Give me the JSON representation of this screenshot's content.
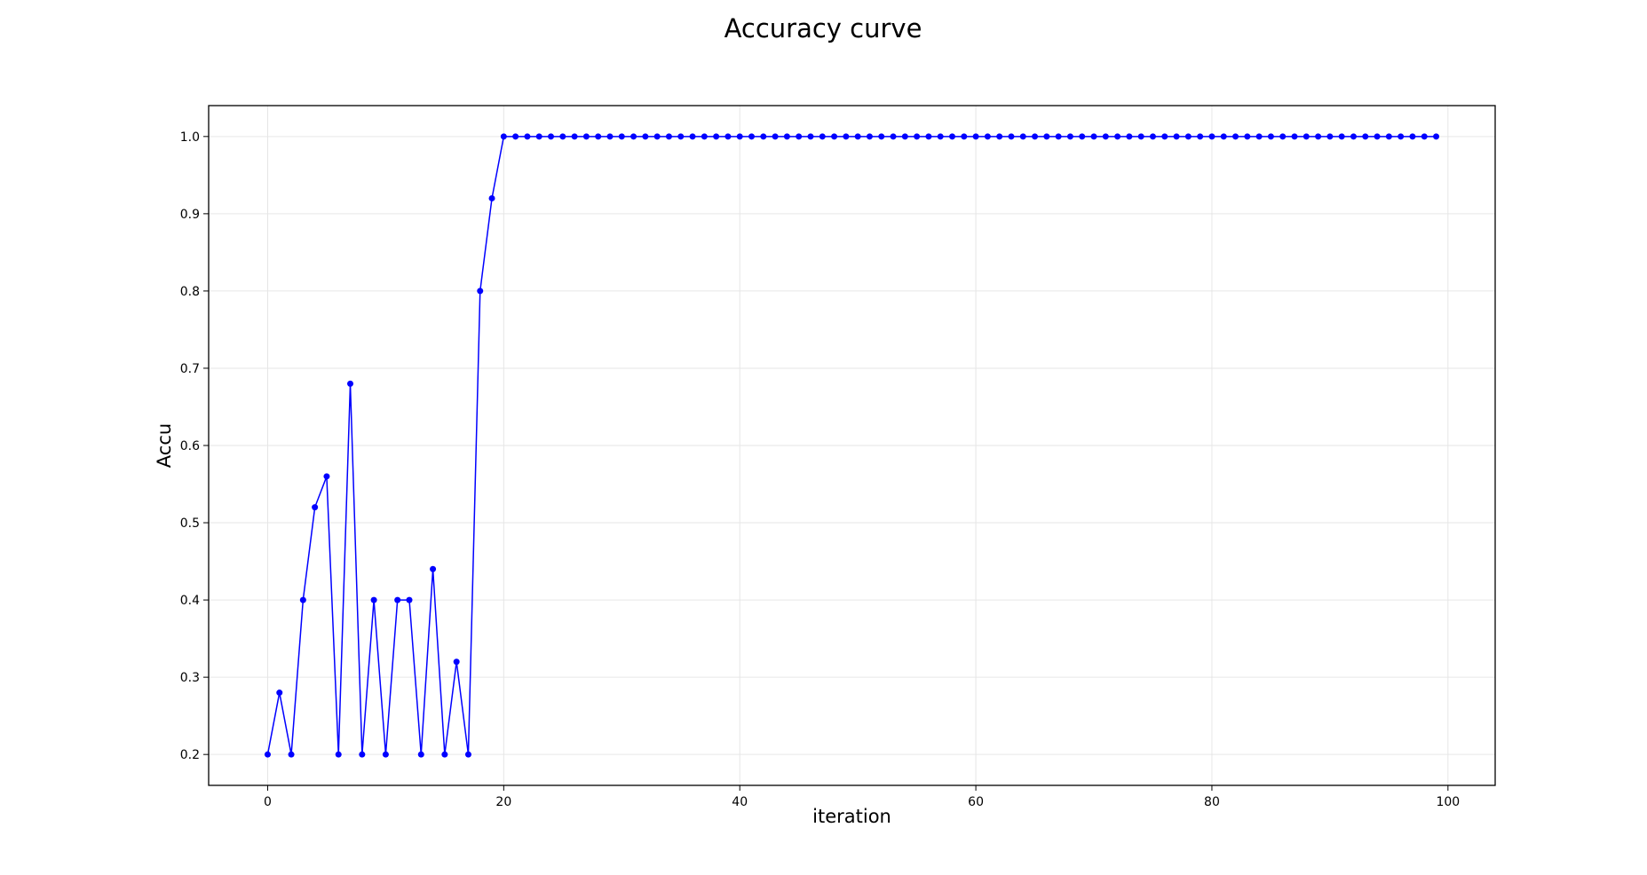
{
  "chart_data": {
    "type": "line",
    "title": "Accuracy curve",
    "xlabel": "iteration",
    "ylabel": "Accu",
    "xlim": [
      -5,
      104
    ],
    "ylim": [
      0.16,
      1.04
    ],
    "xticks": [
      0,
      20,
      40,
      60,
      80,
      100
    ],
    "yticks": [
      0.2,
      0.3,
      0.4,
      0.5,
      0.6,
      0.7,
      0.8,
      0.9,
      1.0
    ],
    "grid": true,
    "legend": "none",
    "colors": {
      "line": "#0000ff",
      "marker": "#0000ff",
      "grid": "#e6e6e6"
    },
    "series": [
      {
        "x": [
          0,
          1,
          2,
          3,
          4,
          5,
          6,
          7,
          8,
          9,
          10,
          11,
          12,
          13,
          14,
          15,
          16,
          17,
          18,
          19,
          20,
          21,
          22,
          23,
          24,
          25,
          26,
          27,
          28,
          29,
          30,
          31,
          32,
          33,
          34,
          35,
          36,
          37,
          38,
          39,
          40,
          41,
          42,
          43,
          44,
          45,
          46,
          47,
          48,
          49,
          50,
          51,
          52,
          53,
          54,
          55,
          56,
          57,
          58,
          59,
          60,
          61,
          62,
          63,
          64,
          65,
          66,
          67,
          68,
          69,
          70,
          71,
          72,
          73,
          74,
          75,
          76,
          77,
          78,
          79,
          80,
          81,
          82,
          83,
          84,
          85,
          86,
          87,
          88,
          89,
          90,
          91,
          92,
          93,
          94,
          95,
          96,
          97,
          98,
          99
        ],
        "y": [
          0.2,
          0.28,
          0.2,
          0.4,
          0.52,
          0.56,
          0.2,
          0.68,
          0.2,
          0.4,
          0.2,
          0.4,
          0.4,
          0.2,
          0.44,
          0.2,
          0.32,
          0.2,
          0.8,
          0.92,
          1.0,
          1.0,
          1.0,
          1.0,
          1.0,
          1.0,
          1.0,
          1.0,
          1.0,
          1.0,
          1.0,
          1.0,
          1.0,
          1.0,
          1.0,
          1.0,
          1.0,
          1.0,
          1.0,
          1.0,
          1.0,
          1.0,
          1.0,
          1.0,
          1.0,
          1.0,
          1.0,
          1.0,
          1.0,
          1.0,
          1.0,
          1.0,
          1.0,
          1.0,
          1.0,
          1.0,
          1.0,
          1.0,
          1.0,
          1.0,
          1.0,
          1.0,
          1.0,
          1.0,
          1.0,
          1.0,
          1.0,
          1.0,
          1.0,
          1.0,
          1.0,
          1.0,
          1.0,
          1.0,
          1.0,
          1.0,
          1.0,
          1.0,
          1.0,
          1.0,
          1.0,
          1.0,
          1.0,
          1.0,
          1.0,
          1.0,
          1.0,
          1.0,
          1.0,
          1.0,
          1.0,
          1.0,
          1.0,
          1.0,
          1.0,
          1.0,
          1.0,
          1.0,
          1.0,
          1.0
        ]
      }
    ]
  }
}
